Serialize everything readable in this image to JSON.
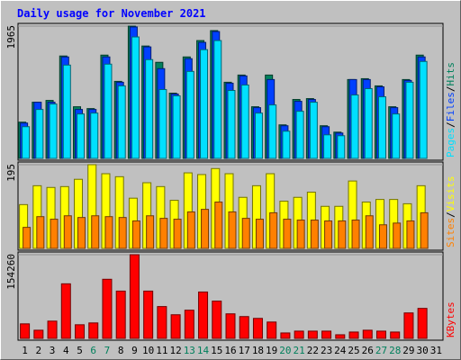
{
  "title": "Daily usage for November 2021",
  "legend_separator": "/",
  "categories": [
    "1",
    "2",
    "3",
    "4",
    "5",
    "6",
    "7",
    "8",
    "9",
    "10",
    "11",
    "12",
    "13",
    "14",
    "15",
    "16",
    "17",
    "18",
    "19",
    "20",
    "21",
    "22",
    "23",
    "24",
    "25",
    "26",
    "27",
    "28",
    "29",
    "30",
    "31"
  ],
  "category_colors": [
    "#000000",
    "#000000",
    "#000000",
    "#000000",
    "#000000",
    "#00805c",
    "#00805c",
    "#000000",
    "#000000",
    "#000000",
    "#000000",
    "#000000",
    "#00805c",
    "#00805c",
    "#000000",
    "#000000",
    "#000000",
    "#000000",
    "#000000",
    "#00805c",
    "#00805c",
    "#000000",
    "#000000",
    "#000000",
    "#000000",
    "#000000",
    "#00805c",
    "#00805c",
    "#000000",
    "#000000",
    "#000000"
  ],
  "chart_data": [
    {
      "type": "bar",
      "ylim": [
        0,
        1965
      ],
      "yticks": [
        1965
      ],
      "series": [
        {
          "name": "Hits",
          "color": "#00805c",
          "values": [
            538,
            834,
            861,
            1521,
            767,
            740,
            1534,
            1144,
            1965,
            1669,
            1427,
            969,
            1507,
            1750,
            1898,
            1131,
            1238,
            767,
            1238,
            498,
            875,
            888,
            485,
            390,
            1171,
            1184,
            1077,
            767,
            1171,
            1534,
            0
          ]
        },
        {
          "name": "Files",
          "color": "#0040ff",
          "values": [
            525,
            834,
            834,
            1507,
            727,
            727,
            1507,
            1131,
            1952,
            1656,
            1333,
            956,
            1481,
            1723,
            1884,
            1117,
            1225,
            754,
            1171,
            485,
            848,
            875,
            471,
            377,
            1171,
            1171,
            1063,
            754,
            1158,
            1507,
            0
          ]
        },
        {
          "name": "Pages",
          "color": "#00e0ff",
          "values": [
            471,
            727,
            808,
            1386,
            660,
            673,
            1400,
            1077,
            1804,
            1467,
            1023,
            929,
            1292,
            1615,
            1750,
            1009,
            1090,
            673,
            794,
            404,
            700,
            834,
            350,
            337,
            942,
            1036,
            915,
            660,
            1131,
            1440,
            0
          ]
        }
      ]
    },
    {
      "type": "bar",
      "ylim": [
        0,
        195
      ],
      "yticks": [
        195
      ],
      "series": [
        {
          "name": "Visits",
          "color": "#ffff00",
          "values": [
            102,
            146,
            142,
            144,
            161,
            195,
            174,
            167,
            117,
            153,
            144,
            112,
            176,
            172,
            186,
            174,
            119,
            146,
            174,
            110,
            119,
            131,
            98,
            98,
            157,
            108,
            114,
            114,
            104,
            146,
            0
          ]
        },
        {
          "name": "Sites",
          "color": "#ff8000",
          "values": [
            49,
            74,
            68,
            76,
            72,
            76,
            74,
            72,
            64,
            76,
            70,
            68,
            85,
            91,
            108,
            85,
            70,
            68,
            83,
            68,
            66,
            66,
            64,
            64,
            66,
            76,
            55,
            59,
            64,
            83,
            0
          ]
        }
      ]
    },
    {
      "type": "bar",
      "ylim": [
        0,
        154260
      ],
      "yticks": [
        154260
      ],
      "series": [
        {
          "name": "KBytes",
          "color": "#ff0000",
          "values": [
            26827,
            15090,
            31857,
            100602,
            25150,
            28504,
            108986,
            87188,
            154260,
            87188,
            58685,
            43594,
            51978,
            85512,
            68745,
            45271,
            40241,
            36887,
            30181,
            10060,
            13414,
            13414,
            13414,
            6707,
            11737,
            15090,
            13414,
            11737,
            46948,
            55331,
            0
          ]
        }
      ]
    }
  ]
}
